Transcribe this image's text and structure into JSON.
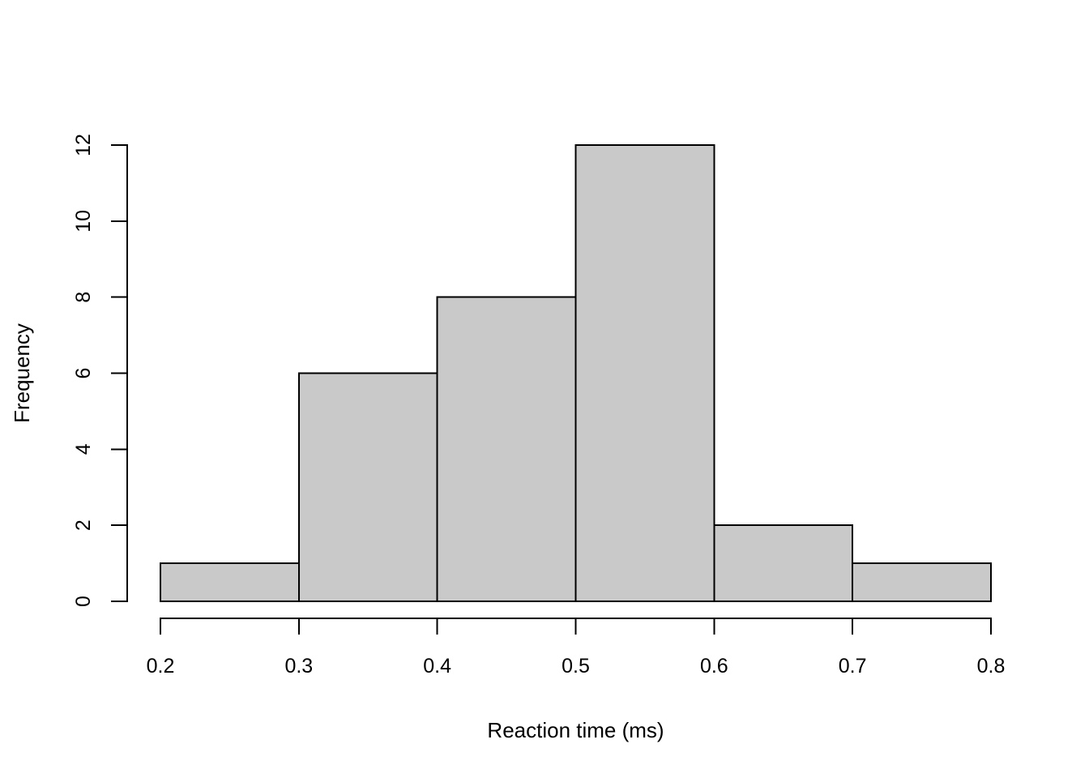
{
  "figure": {
    "background": "#FFFFFF"
  },
  "chart_data": {
    "type": "bar",
    "subtype": "histogram",
    "xlabel": "Reaction time (ms)",
    "ylabel": "Frequency",
    "bin_edges": [
      0.2,
      0.3,
      0.4,
      0.5,
      0.6,
      0.7,
      0.8
    ],
    "counts": [
      1,
      6,
      8,
      12,
      2,
      1
    ],
    "xlim": [
      0.2,
      0.8
    ],
    "ylim": [
      0,
      12
    ],
    "x_ticks": [
      0.2,
      0.3,
      0.4,
      0.5,
      0.6,
      0.7,
      0.8
    ],
    "x_tick_labels": [
      "0.2",
      "0.3",
      "0.4",
      "0.5",
      "0.6",
      "0.7",
      "0.8"
    ],
    "y_ticks": [
      0,
      2,
      4,
      6,
      8,
      10,
      12
    ],
    "y_tick_labels": [
      "0",
      "2",
      "4",
      "6",
      "8",
      "10",
      "12"
    ],
    "bar_fill": "#C9C9C9",
    "bar_stroke": "#000000",
    "axis_color": "#000000",
    "grid": false,
    "legend": "none"
  }
}
